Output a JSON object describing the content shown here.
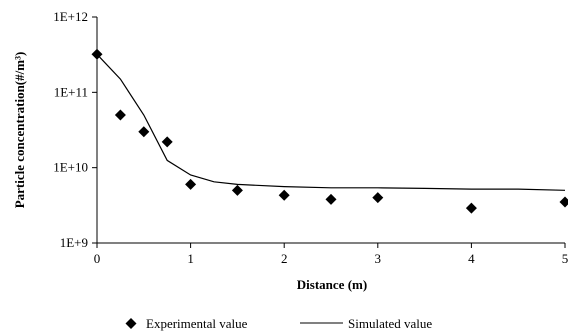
{
  "chart_data": {
    "type": "scatter",
    "title": "",
    "xlabel": "Distance (m)",
    "ylabel": "Particle concentration(#/m³)",
    "y_scale": "log",
    "xlim": [
      0,
      5
    ],
    "ylim": [
      1000000000.0,
      1000000000000.0
    ],
    "grid": false,
    "legend_position": "bottom",
    "x_ticks": [
      {
        "value": 0,
        "label": "0"
      },
      {
        "value": 1,
        "label": "1"
      },
      {
        "value": 2,
        "label": "2"
      },
      {
        "value": 3,
        "label": "3"
      },
      {
        "value": 4,
        "label": "4"
      },
      {
        "value": 5,
        "label": "5"
      }
    ],
    "y_ticks": [
      {
        "value": 1000000000.0,
        "label": "1E+9"
      },
      {
        "value": 10000000000.0,
        "label": "1E+10"
      },
      {
        "value": 100000000000.0,
        "label": "1E+11"
      },
      {
        "value": 1000000000000.0,
        "label": "1E+12"
      }
    ],
    "series": [
      {
        "name": "Experimental value",
        "kind": "markers",
        "marker": "diamond",
        "color": "#000000",
        "points": [
          [
            0,
            320000000000.0
          ],
          [
            0.25,
            50000000000.0
          ],
          [
            0.5,
            30000000000.0
          ],
          [
            0.75,
            22000000000.0
          ],
          [
            1,
            6000000000.0
          ],
          [
            1.5,
            5000000000.0
          ],
          [
            2,
            4300000000.0
          ],
          [
            2.5,
            3800000000.0
          ],
          [
            3,
            4000000000.0
          ],
          [
            4,
            2900000000.0
          ],
          [
            5,
            3500000000.0
          ]
        ]
      },
      {
        "name": "Simulated value",
        "kind": "line",
        "color": "#000000",
        "points": [
          [
            0,
            320000000000.0
          ],
          [
            0.25,
            150000000000.0
          ],
          [
            0.5,
            50000000000.0
          ],
          [
            0.75,
            12500000000.0
          ],
          [
            1,
            8000000000.0
          ],
          [
            1.25,
            6500000000.0
          ],
          [
            1.5,
            6000000000.0
          ],
          [
            2,
            5600000000.0
          ],
          [
            2.5,
            5400000000.0
          ],
          [
            3,
            5400000000.0
          ],
          [
            3.5,
            5300000000.0
          ],
          [
            4,
            5200000000.0
          ],
          [
            4.5,
            5200000000.0
          ],
          [
            5,
            5000000000.0
          ]
        ]
      }
    ]
  }
}
